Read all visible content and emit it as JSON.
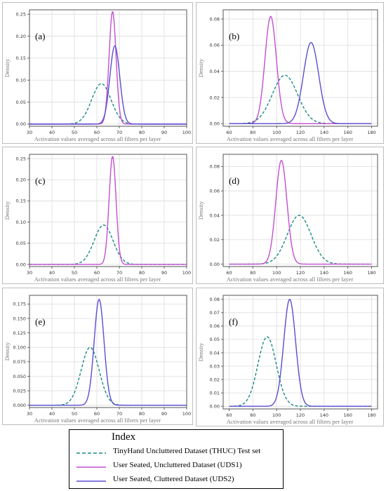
{
  "colors": {
    "thuc": "#1b8a82",
    "uds1": "#c34fd2",
    "uds2": "#5a4ed1",
    "grid": "#dcdcdc",
    "axis": "#444444"
  },
  "legend": {
    "title": "Index",
    "entries": [
      {
        "key": "thuc",
        "label": "TinyHand Uncluttered Dataset (THUC) Test set",
        "style": "dashed"
      },
      {
        "key": "uds1",
        "label": "User Seated, Uncluttered Dataset (UDS1)",
        "style": "solid"
      },
      {
        "key": "uds2",
        "label": "User Seated, Cluttered Dataset (UDS2)",
        "style": "solid"
      }
    ]
  },
  "chart_data": [
    {
      "type": "line",
      "panel_label": "(a)",
      "xlabel": "Activation values averaged across all filters per layer",
      "ylabel": "Density",
      "xlim": [
        30,
        100
      ],
      "ylim": [
        -0.005,
        0.26
      ],
      "xticks": [
        30,
        40,
        50,
        60,
        70,
        80,
        90,
        100
      ],
      "yticks": [
        0.0,
        0.05,
        0.1,
        0.15,
        0.2,
        0.25
      ],
      "grid": true,
      "series": [
        {
          "key": "thuc",
          "mean": 62,
          "sd": 4.3,
          "peak": 0.092
        },
        {
          "key": "uds1",
          "mean": 67,
          "sd": 1.55,
          "peak": 0.256
        },
        {
          "key": "uds2",
          "mean": 68,
          "sd": 2.2,
          "peak": 0.178
        }
      ]
    },
    {
      "type": "line",
      "panel_label": "(b)",
      "xlabel": "Activation values averaged across all filters per layer",
      "ylabel": "Density",
      "xlim": [
        55,
        185
      ],
      "ylim": [
        -0.002,
        0.087
      ],
      "xticks": [
        60,
        80,
        100,
        120,
        140,
        160,
        180
      ],
      "yticks": [
        0.0,
        0.02,
        0.04,
        0.06,
        0.08
      ],
      "grid": true,
      "series": [
        {
          "key": "thuc",
          "mean": 107,
          "sd": 10.6,
          "peak": 0.037
        },
        {
          "key": "uds1",
          "mean": 95,
          "sd": 4.8,
          "peak": 0.082
        },
        {
          "key": "uds2",
          "mean": 129,
          "sd": 6.4,
          "peak": 0.062
        }
      ]
    },
    {
      "type": "line",
      "panel_label": "(c)",
      "xlabel": "Activation values averaged across all filters per layer",
      "ylabel": "Density",
      "xlim": [
        30,
        100
      ],
      "ylim": [
        -0.005,
        0.26
      ],
      "xticks": [
        30,
        40,
        50,
        60,
        70,
        80,
        90,
        100
      ],
      "yticks": [
        0.0,
        0.05,
        0.1,
        0.15,
        0.2,
        0.25
      ],
      "grid": true,
      "series": [
        {
          "key": "thuc",
          "mean": 63,
          "sd": 4.2,
          "peak": 0.093
        },
        {
          "key": "uds1",
          "mean": 67,
          "sd": 1.55,
          "peak": 0.255
        }
      ]
    },
    {
      "type": "line",
      "panel_label": "(d)",
      "xlabel": "Activation values averaged across all filters per layer",
      "ylabel": "Density",
      "xlim": [
        55,
        185
      ],
      "ylim": [
        -0.002,
        0.09
      ],
      "xticks": [
        60,
        80,
        100,
        120,
        140,
        160,
        180
      ],
      "yticks": [
        0.0,
        0.02,
        0.04,
        0.06,
        0.08
      ],
      "grid": true,
      "series": [
        {
          "key": "thuc",
          "mean": 119,
          "sd": 10,
          "peak": 0.04
        },
        {
          "key": "uds1",
          "mean": 104,
          "sd": 4.7,
          "peak": 0.085
        }
      ]
    },
    {
      "type": "line",
      "panel_label": "(e)",
      "xlabel": "Activation values averaged across all filters per layer",
      "ylabel": "Density",
      "xlim": [
        30,
        100
      ],
      "ylim": [
        -0.004,
        0.19
      ],
      "xticks": [
        30,
        40,
        50,
        60,
        70,
        80,
        90,
        100
      ],
      "yticks": [
        0.0,
        0.025,
        0.05,
        0.075,
        0.1,
        0.125,
        0.15,
        0.175
      ],
      "grid": true,
      "series": [
        {
          "key": "thuc",
          "mean": 57,
          "sd": 4,
          "peak": 0.1
        },
        {
          "key": "uds2",
          "mean": 61,
          "sd": 2.2,
          "peak": 0.183
        }
      ]
    },
    {
      "type": "line",
      "panel_label": "(f)",
      "xlabel": "Activation values averaged across all filters per layer",
      "ylabel": "Density",
      "xlim": [
        55,
        185
      ],
      "ylim": [
        -0.002,
        0.083
      ],
      "xticks": [
        60,
        80,
        100,
        120,
        140,
        160,
        180
      ],
      "yticks": [
        0.0,
        0.01,
        0.02,
        0.03,
        0.04,
        0.05,
        0.06,
        0.07,
        0.08
      ],
      "grid": true,
      "series": [
        {
          "key": "thuc",
          "mean": 92,
          "sd": 7.7,
          "peak": 0.052
        },
        {
          "key": "uds2",
          "mean": 111,
          "sd": 5,
          "peak": 0.08
        }
      ]
    }
  ]
}
